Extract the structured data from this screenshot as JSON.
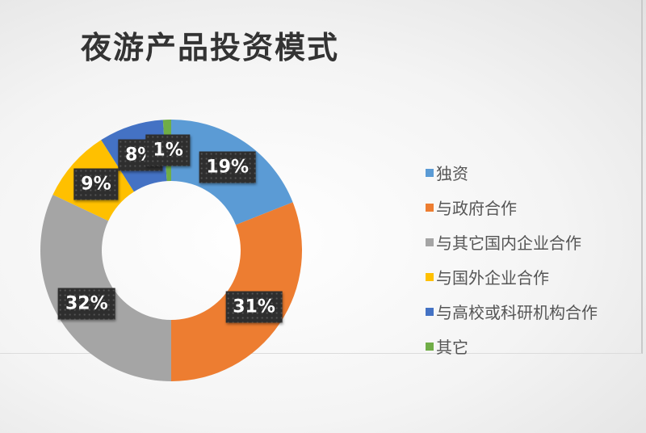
{
  "chart_data": {
    "type": "pie",
    "variant": "donut",
    "title": "夜游产品投资模式",
    "categories": [
      "独资",
      "与政府合作",
      "与其它国内企业合作",
      "与国外企业合作",
      "与高校或科研机构合作",
      "其它"
    ],
    "values": [
      19,
      31,
      32,
      9,
      8,
      1
    ],
    "data_labels": [
      "19%",
      "31%",
      "32%",
      "9%",
      "8%",
      "1%"
    ],
    "colors": [
      "#5b9bd5",
      "#ed7d31",
      "#a5a5a5",
      "#ffc000",
      "#4472c4",
      "#70ad47"
    ],
    "start": "top",
    "direction": "clockwise",
    "legend_position": "right"
  }
}
